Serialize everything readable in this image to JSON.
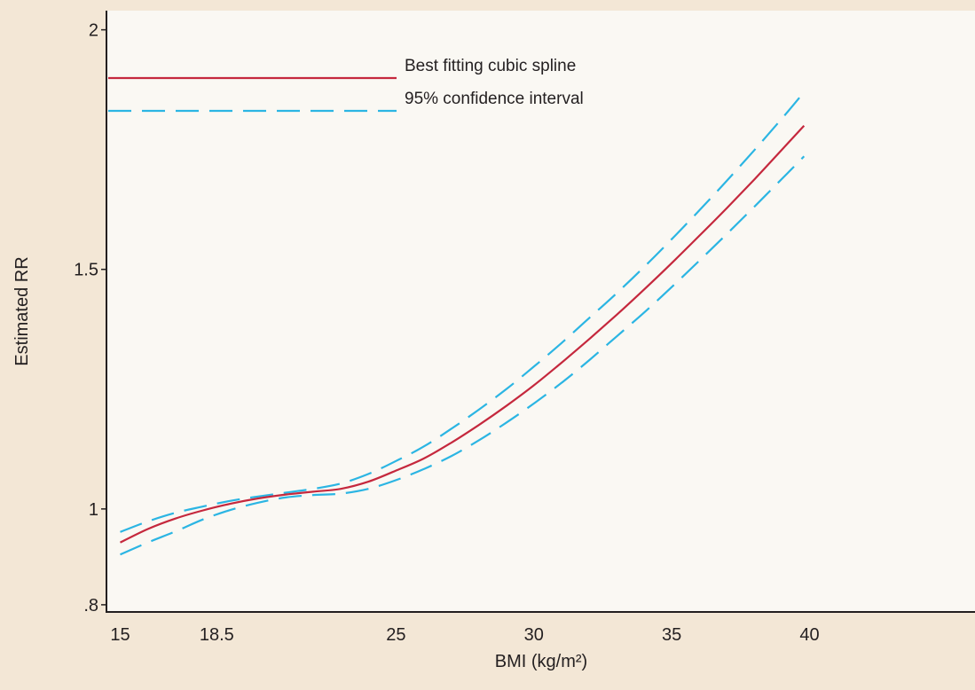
{
  "colors": {
    "page_background": "#f3e7d6",
    "plot_background": "#faf8f3",
    "axis": "#231f20",
    "spline": "#c5283d",
    "ci": "#2bb5e3"
  },
  "chart_data": {
    "type": "line",
    "title": "",
    "xlabel": "BMI (kg/m²)",
    "ylabel": "Estimated RR",
    "xlim": [
      14.5,
      46
    ],
    "ylim": [
      0.785,
      2.04
    ],
    "y_scale": "linear",
    "grid": false,
    "legend_position": "top-left",
    "x_ticks": [
      {
        "value": 15,
        "label": "15"
      },
      {
        "value": 18.5,
        "label": "18.5"
      },
      {
        "value": 25,
        "label": "25"
      },
      {
        "value": 30,
        "label": "30"
      },
      {
        "value": 35,
        "label": "35"
      },
      {
        "value": 40,
        "label": "40"
      }
    ],
    "y_ticks": [
      {
        "value": 0.8,
        "label": ".8"
      },
      {
        "value": 1,
        "label": "1"
      },
      {
        "value": 1.5,
        "label": "1.5"
      },
      {
        "value": 2,
        "label": "2"
      }
    ],
    "series": [
      {
        "name": "Best fitting cubic spline",
        "style": "solid",
        "color": "#c5283d",
        "x": [
          15,
          16,
          17,
          18,
          19,
          20,
          21,
          22,
          23,
          24,
          25,
          26,
          27,
          28,
          29,
          30,
          31,
          32,
          33,
          34,
          35,
          36,
          37,
          38,
          39,
          39.8
        ],
        "y": [
          0.93,
          0.958,
          0.98,
          0.997,
          1.011,
          1.022,
          1.03,
          1.036,
          1.042,
          1.057,
          1.08,
          1.105,
          1.138,
          1.175,
          1.215,
          1.258,
          1.305,
          1.354,
          1.405,
          1.458,
          1.513,
          1.57,
          1.628,
          1.688,
          1.75,
          1.8
        ]
      },
      {
        "name": "95% confidence interval",
        "style": "dashed",
        "color": "#2bb5e3",
        "x": [
          15,
          16,
          17,
          18,
          19,
          20,
          21,
          22,
          23,
          24,
          25,
          26,
          27,
          28,
          29,
          30,
          31,
          32,
          33,
          34,
          35,
          36,
          37,
          38,
          39,
          39.8
        ],
        "y": [
          0.952,
          0.974,
          0.992,
          1.005,
          1.017,
          1.026,
          1.034,
          1.042,
          1.053,
          1.073,
          1.1,
          1.13,
          1.167,
          1.207,
          1.25,
          1.297,
          1.346,
          1.398,
          1.45,
          1.505,
          1.563,
          1.623,
          1.685,
          1.749,
          1.815,
          1.87
        ]
      },
      {
        "name": "",
        "style": "dashed",
        "color": "#2bb5e3",
        "x": [
          15,
          16,
          17,
          18,
          19,
          20,
          21,
          22,
          23,
          24,
          25,
          26,
          27,
          28,
          29,
          30,
          31,
          32,
          33,
          34,
          35,
          36,
          37,
          38,
          39,
          39.8
        ],
        "y": [
          0.905,
          0.93,
          0.953,
          0.978,
          0.998,
          1.013,
          1.024,
          1.029,
          1.032,
          1.042,
          1.06,
          1.083,
          1.11,
          1.143,
          1.18,
          1.22,
          1.263,
          1.31,
          1.36,
          1.41,
          1.463,
          1.518,
          1.574,
          1.631,
          1.689,
          1.736
        ]
      }
    ]
  }
}
